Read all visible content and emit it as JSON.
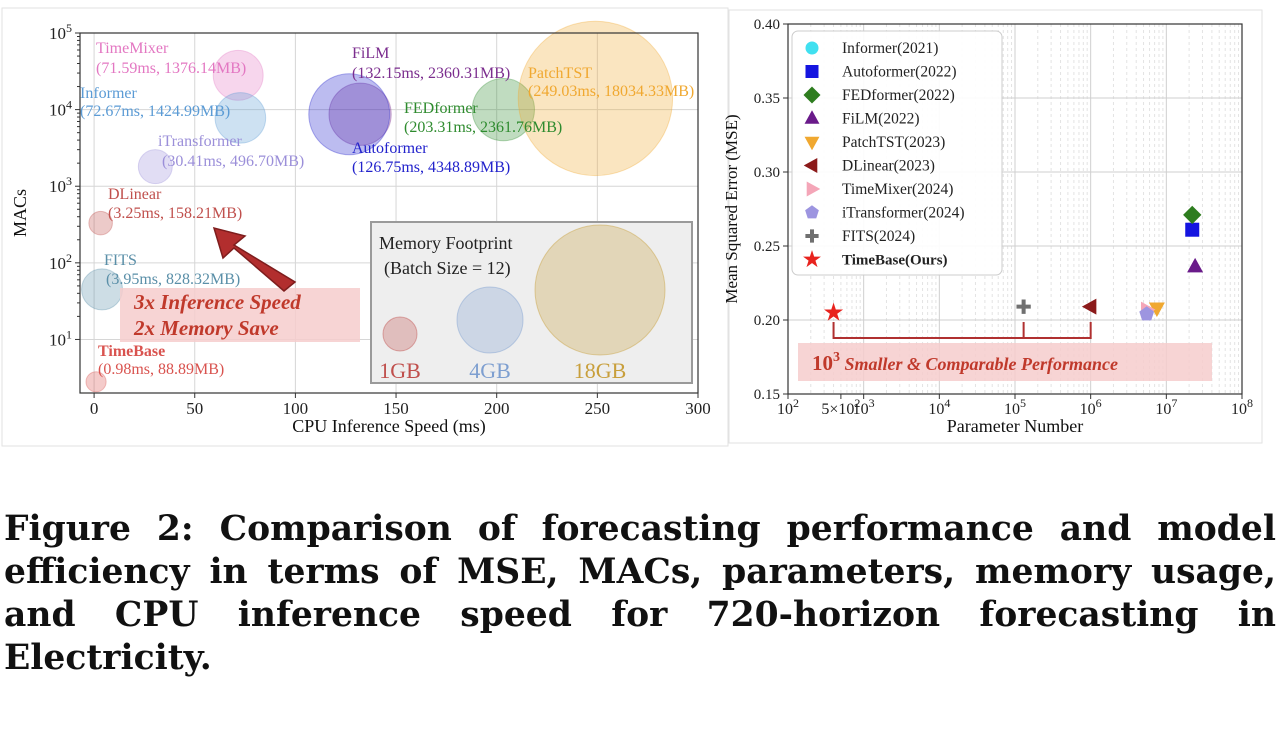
{
  "caption": "Figure 2: Comparison of forecasting performance and model efficiency in terms of MSE, MACs, parameters, memory usage, and CPU inference speed for 720-horizon forecasting in Electricity.",
  "chart_data": [
    {
      "type": "scatter",
      "subtype": "bubble",
      "xlabel": "CPU Inference Speed (ms)",
      "ylabel": "MACs",
      "xlim": [
        -7,
        300
      ],
      "ylim": [
        2,
        100000
      ],
      "y_scale": "log",
      "x_ticks": [
        "0",
        "50",
        "100",
        "150",
        "200",
        "250",
        "300"
      ],
      "y_ticks": [
        "10^1",
        "10^2",
        "10^3",
        "10^4",
        "10^5"
      ],
      "grid": true,
      "points": [
        {
          "name": "TimeMixer",
          "label": "(71.59ms, 1376.14MB)",
          "x": 71.59,
          "y": 28000,
          "memory_mb": 1376.14,
          "color": "#e377c2"
        },
        {
          "name": "Informer",
          "label": "(72.67ms, 1424.99MB)",
          "x": 72.67,
          "y": 7800,
          "memory_mb": 1424.99,
          "color": "#5b9bd5"
        },
        {
          "name": "iTransformer",
          "label": "(30.41ms, 496.70MB)",
          "x": 30.41,
          "y": 1800,
          "memory_mb": 496.7,
          "color": "#9b8fd9"
        },
        {
          "name": "DLinear",
          "label": "(3.25ms, 158.21MB)",
          "x": 3.25,
          "y": 330,
          "memory_mb": 158.21,
          "color": "#c0504d"
        },
        {
          "name": "FITS",
          "label": "(3.95ms, 828.32MB)",
          "x": 3.95,
          "y": 45,
          "memory_mb": 828.32,
          "color": "#5a8fa8"
        },
        {
          "name": "TimeBase",
          "label": "(0.98ms, 88.89MB)",
          "x": 0.98,
          "y": 2.8,
          "memory_mb": 88.89,
          "color": "#d9534f"
        },
        {
          "name": "FiLM",
          "label": "(132.15ms, 2360.31MB)",
          "x": 132.15,
          "y": 8700,
          "memory_mb": 2360.31,
          "color": "#7b2d8e"
        },
        {
          "name": "Autoformer",
          "label": "(126.75ms, 4348.89MB)",
          "x": 126.75,
          "y": 8700,
          "memory_mb": 4348.89,
          "color": "#2222cc"
        },
        {
          "name": "FEDformer",
          "label": "(203.31ms, 2361.76MB)",
          "x": 203.31,
          "y": 10000,
          "memory_mb": 2361.76,
          "color": "#2e8b2e"
        },
        {
          "name": "PatchTST",
          "label": "(249.03ms, 18034.33MB)",
          "x": 249.03,
          "y": 14000,
          "memory_mb": 18034.33,
          "color": "#f0a830"
        }
      ],
      "annotations": [
        {
          "text": "3x Inference Speed",
          "color": "#c0392b"
        },
        {
          "text": "2x Memory Save",
          "color": "#c0392b"
        }
      ],
      "legend": {
        "title": "Memory Footprint",
        "subtitle": "(Batch Size = 12)",
        "entries": [
          {
            "label": "1GB",
            "color": "#c0504d"
          },
          {
            "label": "4GB",
            "color": "#7e9fd0"
          },
          {
            "label": "18GB",
            "color": "#c89f3c"
          }
        ]
      }
    },
    {
      "type": "scatter",
      "xlabel": "Parameter Number",
      "ylabel": "Mean Squared Error (MSE)",
      "x_scale": "log",
      "xlim": [
        100,
        100000000
      ],
      "ylim": [
        0.15,
        0.4
      ],
      "x_ticks": [
        "10^2",
        "5×10^2",
        "10^3",
        "10^4",
        "10^5",
        "10^6",
        "10^7",
        "10^8"
      ],
      "y_ticks": [
        "0.15",
        "0.20",
        "0.25",
        "0.30",
        "0.35",
        "0.40"
      ],
      "grid": true,
      "legend_position": "top-left",
      "series": [
        {
          "name": "Informer(2021)",
          "marker": "circle",
          "color": "#40e0f0",
          "points": []
        },
        {
          "name": "Autoformer(2022)",
          "marker": "square",
          "color": "#1515e0",
          "points": [
            [
              22000000,
              0.261
            ]
          ]
        },
        {
          "name": "FEDformer(2022)",
          "marker": "diamond",
          "color": "#2e7d1f",
          "points": [
            [
              22000000,
              0.271
            ]
          ]
        },
        {
          "name": "FiLM(2022)",
          "marker": "triangle-up",
          "color": "#6a1b8a",
          "points": [
            [
              24000000,
              0.236
            ]
          ]
        },
        {
          "name": "PatchTST(2023)",
          "marker": "triangle-down",
          "color": "#f0a830",
          "points": [
            [
              7500000,
              0.208
            ]
          ]
        },
        {
          "name": "DLinear(2023)",
          "marker": "triangle-left",
          "color": "#8b1a1a",
          "points": [
            [
              1000000,
              0.209
            ]
          ]
        },
        {
          "name": "TimeMixer(2024)",
          "marker": "triangle-right",
          "color": "#f4a6b8",
          "points": [
            [
              5500000,
              0.207
            ]
          ]
        },
        {
          "name": "iTransformer(2024)",
          "marker": "pentagon",
          "color": "#9d95e0",
          "points": [
            [
              5500000,
              0.204
            ]
          ]
        },
        {
          "name": "FITS(2024)",
          "marker": "plus",
          "color": "#707070",
          "points": [
            [
              130000,
              0.209
            ]
          ]
        },
        {
          "name": "TimeBase(Ours)",
          "marker": "star",
          "color": "#e8231e",
          "bold": true,
          "points": [
            [
              400,
              0.205
            ]
          ]
        }
      ],
      "annotation": {
        "prefix": "10",
        "superscript": "3",
        "text": "Smaller & Comparable Performance",
        "color": "#c0392b"
      }
    }
  ]
}
